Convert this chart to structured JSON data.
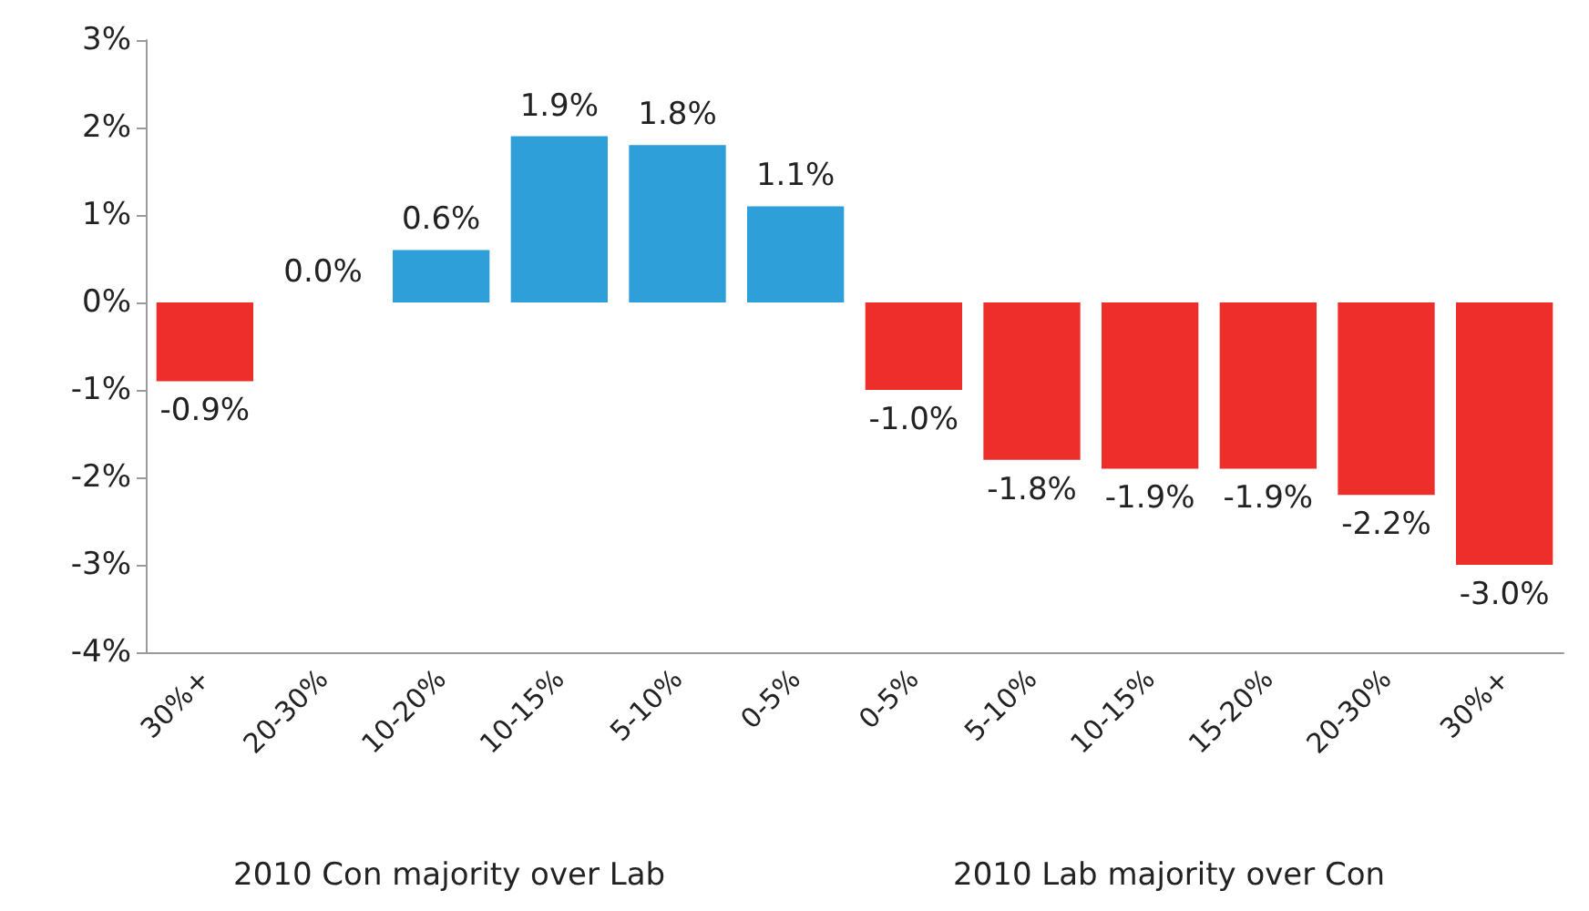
{
  "chart_data": {
    "type": "bar",
    "categories": [
      "30%+",
      "20-30%",
      "10-20%",
      "10-15%",
      "5-10%",
      "0-5%",
      "0-5%",
      "5-10%",
      "10-15%",
      "15-20%",
      "20-30%",
      "30%+"
    ],
    "values": [
      -0.9,
      0.0,
      0.6,
      1.9,
      1.8,
      1.1,
      -1.0,
      -1.8,
      -1.9,
      -1.9,
      -2.2,
      -3.0
    ],
    "value_labels": [
      "-0.9%",
      "0.0%",
      "0.6%",
      "1.9%",
      "1.8%",
      "1.1%",
      "-1.0%",
      "-1.8%",
      "-1.9%",
      "-1.9%",
      "-2.2%",
      "-3.0%"
    ],
    "colors": [
      "#ee2e2a",
      "#2e9fd9",
      "#2e9fd9",
      "#2e9fd9",
      "#2e9fd9",
      "#2e9fd9",
      "#ee2e2a",
      "#ee2e2a",
      "#ee2e2a",
      "#ee2e2a",
      "#ee2e2a",
      "#ee2e2a"
    ],
    "ylim": [
      -4,
      3
    ],
    "yticks": [
      {
        "value": -4,
        "label": "-4%"
      },
      {
        "value": -3,
        "label": "-3%"
      },
      {
        "value": -2,
        "label": "-2%"
      },
      {
        "value": -1,
        "label": "-1%"
      },
      {
        "value": 0,
        "label": "0%"
      },
      {
        "value": 1,
        "label": "1%"
      },
      {
        "value": 2,
        "label": "2%"
      },
      {
        "value": 3,
        "label": "3%"
      }
    ],
    "annotations": [
      "2010 Con majority over Lab",
      "2010 Lab majority over Con"
    ],
    "grid": false
  }
}
